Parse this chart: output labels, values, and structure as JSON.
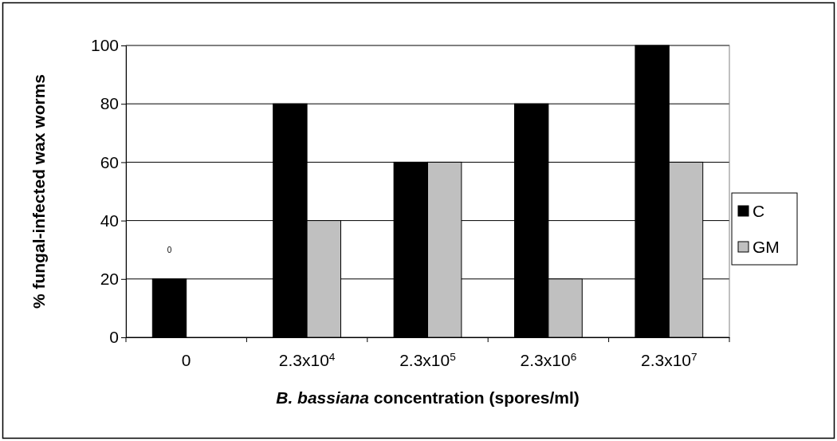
{
  "chart_data": {
    "type": "bar",
    "xlabel": "B. bassiana concentration (spores/ml)",
    "ylabel": "% fungal-infected wax worms",
    "categories": [
      "0",
      "2.3x10$^{4}$",
      "2.3x10$^{5}$",
      "2.3x10$^{6}$",
      "2.3x10$^{7}$"
    ],
    "series": [
      {
        "name": "C",
        "color": "#000000",
        "values": [
          20,
          80,
          60,
          80,
          100
        ]
      },
      {
        "name": "GM",
        "color": "#c0c0c0",
        "values": [
          0,
          40,
          60,
          20,
          60
        ]
      }
    ],
    "ylim": [
      0,
      100
    ],
    "yticks": [
      0,
      20,
      40,
      60,
      80,
      100
    ],
    "grid": "y",
    "legend": "right",
    "annotations": [
      "0"
    ]
  }
}
